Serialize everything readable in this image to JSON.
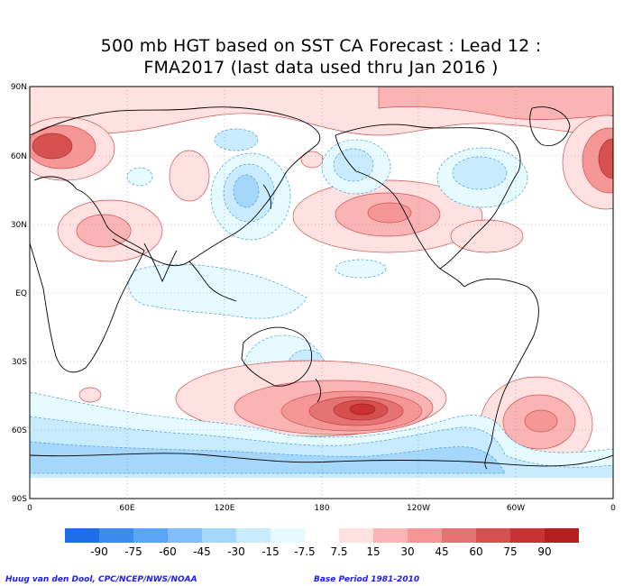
{
  "title_line1": "500 mb HGT based on SST CA Forecast : Lead 12 :",
  "title_line2": "FMA2017 (last data used thru Jan 2016 )",
  "lat_labels": [
    "90N",
    "60N",
    "30N",
    "EQ",
    "30S",
    "60S",
    "90S"
  ],
  "lon_labels": [
    "0",
    "60E",
    "120E",
    "180",
    "120W",
    "60W",
    "0"
  ],
  "colorbar": {
    "labels": [
      "-90",
      "-75",
      "-60",
      "-45",
      "-30",
      "-15",
      "-7.5",
      "7.5",
      "15",
      "30",
      "45",
      "60",
      "75",
      "90"
    ],
    "colors": [
      "#1e6eeb",
      "#3c8cf0",
      "#5aa5f5",
      "#82bef9",
      "#a5d7fb",
      "#c8ecfd",
      "#e6fbff",
      "#ffffff",
      "#ffe1e1",
      "#fab4b4",
      "#f59696",
      "#e67373",
      "#d75050",
      "#c83232",
      "#b41e1e"
    ]
  },
  "footer": {
    "credit": "Huug van den Dool, CPC/NCEP/NWS/NOAA",
    "base_period": "Base Period 1981-2010"
  },
  "colors": {
    "positive_light": "#ffe1e1",
    "positive_mid": "#fab4b4",
    "positive_strong": "#e67373",
    "positive_peak": "#c83232",
    "negative_light": "#e6fbff",
    "negative_mid": "#c8ecfd",
    "negative_strong": "#a5d7fb",
    "negative_peak": "#82bef9"
  }
}
